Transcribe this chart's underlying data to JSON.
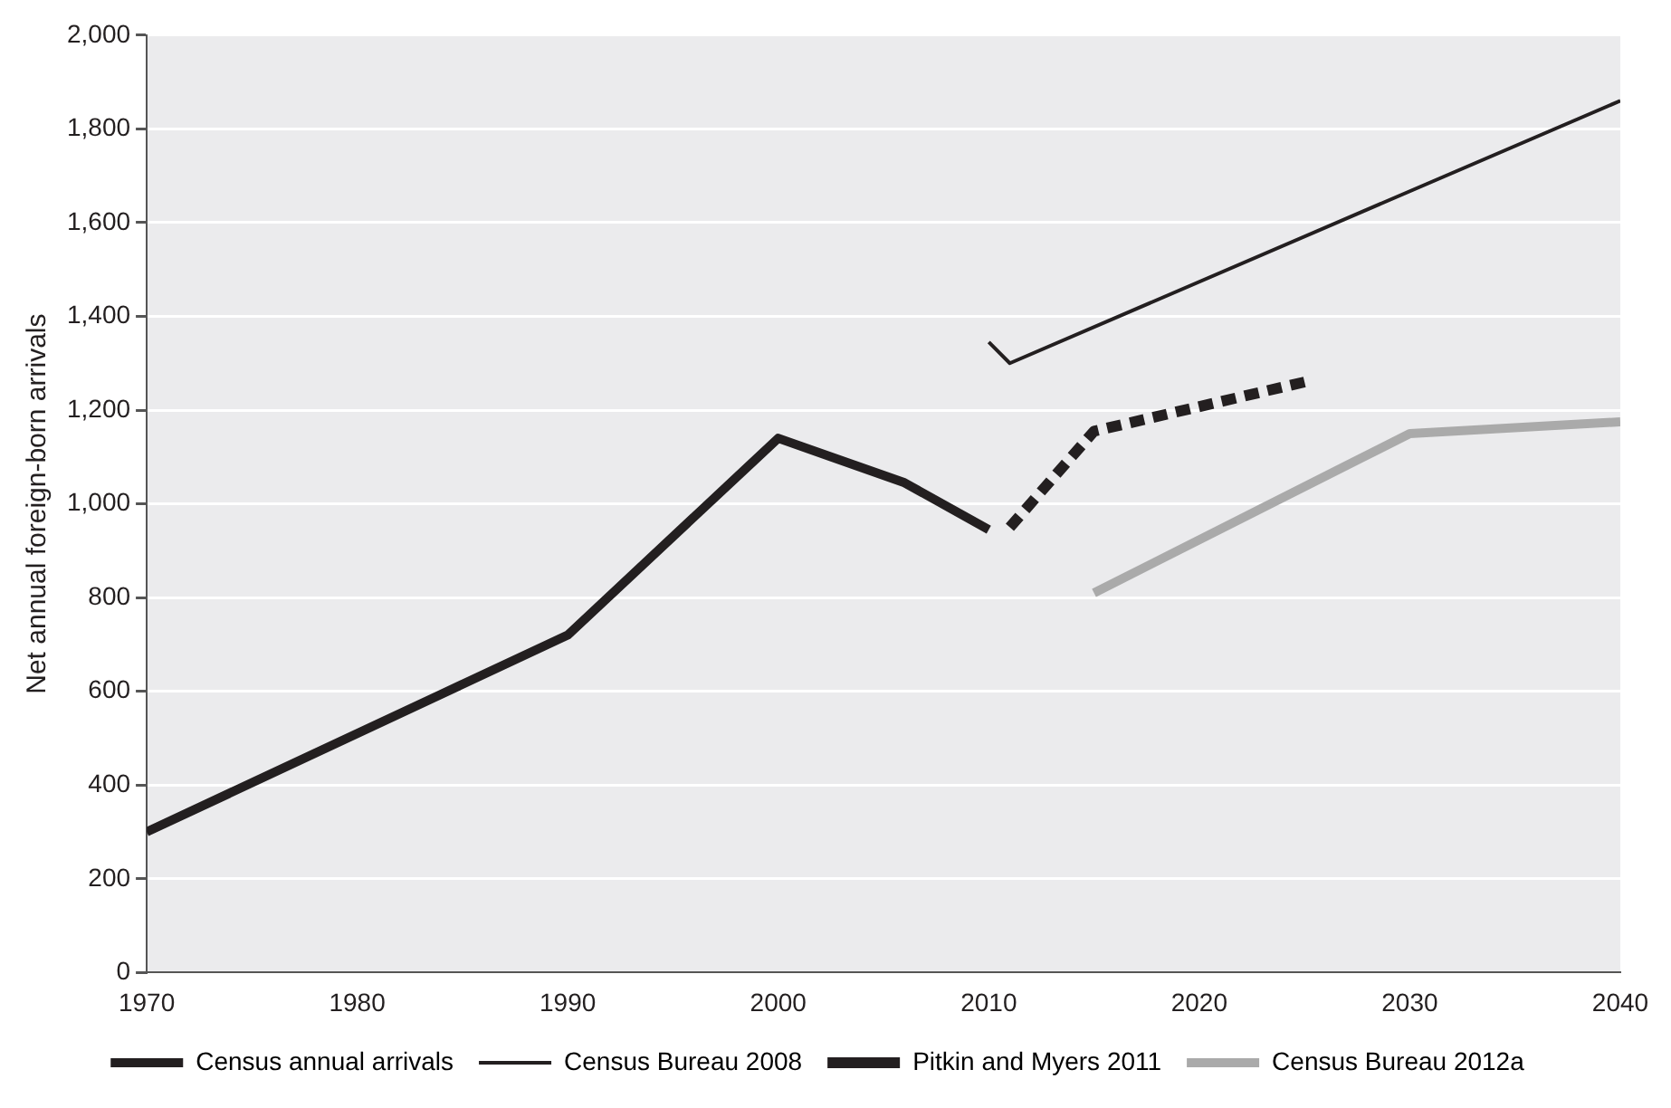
{
  "chart_data": {
    "type": "line",
    "ylabel": "Net annual foreign-born arrivals",
    "xlim": [
      1970,
      2040
    ],
    "xticks": [
      1970,
      1980,
      1990,
      2000,
      2010,
      2020,
      2030,
      2040
    ],
    "ylim": [
      0,
      2000
    ],
    "yticks": [
      {
        "value": 0,
        "label": "0"
      },
      {
        "value": 200,
        "label": "200"
      },
      {
        "value": 400,
        "label": "400"
      },
      {
        "value": 600,
        "label": "600"
      },
      {
        "value": 800,
        "label": "800"
      },
      {
        "value": 1000,
        "label": "1,000"
      },
      {
        "value": 1200,
        "label": "1,200"
      },
      {
        "value": 1400,
        "label": "1,400"
      },
      {
        "value": 1600,
        "label": "1,600"
      },
      {
        "value": 1800,
        "label": "1,800"
      },
      {
        "value": 2000,
        "label": "2,000"
      }
    ],
    "grid": "y",
    "legend": "bottom",
    "marker": "none",
    "series": [
      {
        "name": "Census annual arrivals",
        "color": "#231f20",
        "line_style": "solid",
        "x": [
          1970,
          1990,
          2000,
          2006,
          2010
        ],
        "values": [
          300,
          720,
          1140,
          1045,
          945
        ]
      },
      {
        "name": "Census Bureau 2008",
        "color": "#231f20",
        "line_style": "solid",
        "x": [
          2010,
          2011,
          2040
        ],
        "values": [
          1345,
          1300,
          1860
        ]
      },
      {
        "name": "Pitkin and Myers 2011",
        "color": "#231f20",
        "line_style": "dashed",
        "x": [
          2011,
          2015,
          2025
        ],
        "values": [
          950,
          1155,
          1260
        ]
      },
      {
        "name": "Census Bureau 2012a",
        "color": "#aaaaaa",
        "line_style": "solid",
        "x": [
          2015,
          2030,
          2040
        ],
        "values": [
          810,
          1150,
          1175
        ]
      }
    ]
  }
}
